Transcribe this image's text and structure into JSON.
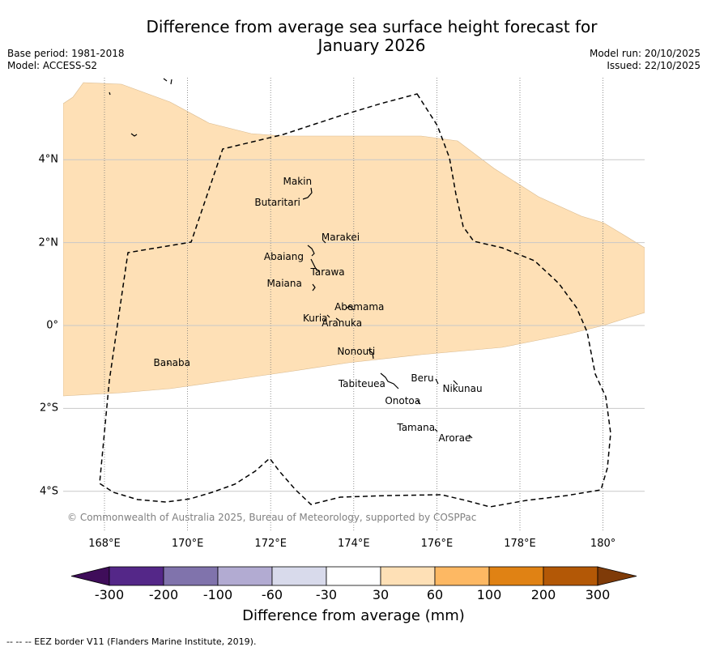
{
  "title": {
    "line1": "Difference from average sea surface height forecast for",
    "line2": "January 2026"
  },
  "meta_left": {
    "base_period": "Base period: 1981-2018",
    "model": "Model: ACCESS-S2"
  },
  "meta_right": {
    "model_run": "Model run: 20/10/2025",
    "issued": "Issued: 22/10/2025"
  },
  "map": {
    "x_ticks": [
      {
        "value": 168,
        "label": "168°E"
      },
      {
        "value": 170,
        "label": "170°E"
      },
      {
        "value": 172,
        "label": "172°E"
      },
      {
        "value": 174,
        "label": "174°E"
      },
      {
        "value": 176,
        "label": "176°E"
      },
      {
        "value": 178,
        "label": "178°E"
      },
      {
        "value": 180,
        "label": "180°"
      }
    ],
    "y_ticks": [
      {
        "value": 4,
        "label": "4°N"
      },
      {
        "value": 2,
        "label": "2°N"
      },
      {
        "value": 0,
        "label": "0°"
      },
      {
        "value": -2,
        "label": "2°S"
      },
      {
        "value": -4,
        "label": "4°S"
      }
    ],
    "lon_range": [
      167,
      181
    ],
    "lat_range": [
      -5,
      6
    ],
    "shaded_category": "30 to 60",
    "shaded_color": "#fee0b6",
    "places": [
      {
        "name": "Makin",
        "lon": 173.0,
        "lat": 3.3
      },
      {
        "name": "Butaritari",
        "lon": 172.9,
        "lat": 3.05
      },
      {
        "name": "Marakei",
        "lon": 173.3,
        "lat": 2.0
      },
      {
        "name": "Abaiang",
        "lon": 172.95,
        "lat": 1.8
      },
      {
        "name": "Tarawa",
        "lon": 173.0,
        "lat": 1.4
      },
      {
        "name": "Maiana",
        "lon": 173.0,
        "lat": 0.95
      },
      {
        "name": "Abemama",
        "lon": 173.85,
        "lat": 0.4
      },
      {
        "name": "Kuria",
        "lon": 173.4,
        "lat": 0.2
      },
      {
        "name": "Aranuka",
        "lon": 173.6,
        "lat": 0.15
      },
      {
        "name": "Nonouti",
        "lon": 174.4,
        "lat": -0.65
      },
      {
        "name": "Banaba",
        "lon": 169.53,
        "lat": -0.87
      },
      {
        "name": "Tabiteuea",
        "lon": 174.8,
        "lat": -1.3
      },
      {
        "name": "Beru",
        "lon": 176.0,
        "lat": -1.3
      },
      {
        "name": "Nikunau",
        "lon": 176.45,
        "lat": -1.35
      },
      {
        "name": "Onotoa",
        "lon": 175.55,
        "lat": -1.85
      },
      {
        "name": "Tamana",
        "lon": 175.98,
        "lat": -2.5
      },
      {
        "name": "Arorae",
        "lon": 176.82,
        "lat": -2.65
      }
    ],
    "copyright": "© Commonwealth of Australia 2025, Bureau of Meteorology, supported by COSPPac"
  },
  "colorbar": {
    "label": "Difference from average (mm)",
    "colors": [
      "#3f0d5a",
      "#542788",
      "#8073ac",
      "#b2abd2",
      "#d8daeb",
      "#ffffff",
      "#fee0b6",
      "#fdb863",
      "#e08214",
      "#b35806",
      "#7f3b08"
    ],
    "ticks": [
      "-300",
      "-200",
      "-100",
      "-60",
      "-30",
      "30",
      "60",
      "100",
      "200",
      "300"
    ]
  },
  "eez_note": "--  --  -- EEZ border V11 (Flanders Marine Institute, 2019)."
}
